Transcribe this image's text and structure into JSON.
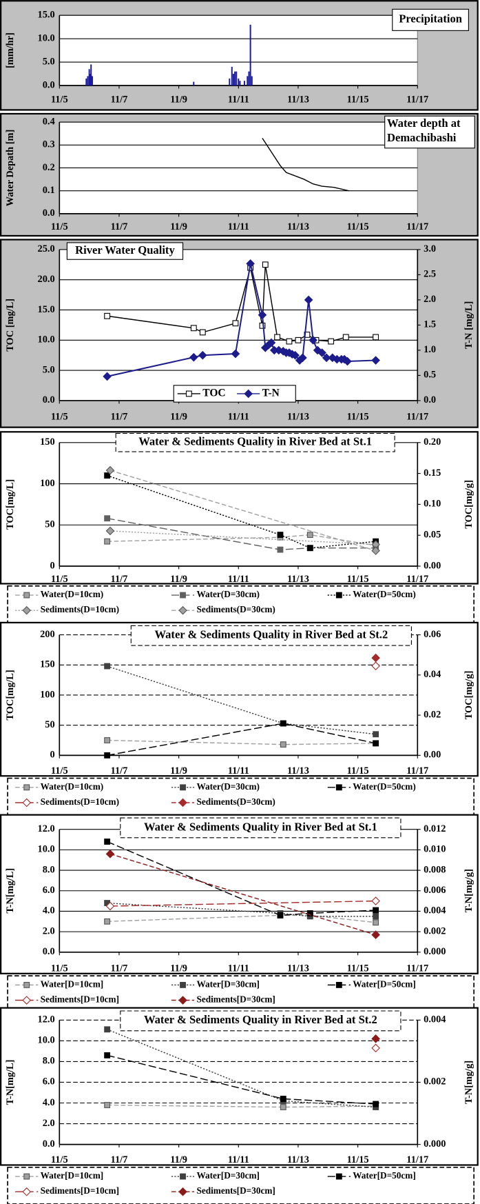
{
  "chart_data": [
    {
      "type": "bar",
      "title": "Precipitation",
      "ylabel": "[mm/hr]",
      "color": "#1a1a9c",
      "x": [
        5.9,
        5.95,
        6.0,
        6.03,
        6.06,
        6.1,
        9.5,
        10.7,
        10.78,
        10.83,
        10.88,
        10.93,
        11.0,
        11.05,
        11.2,
        11.3,
        11.35,
        11.4,
        11.45
      ],
      "values": [
        1.5,
        2.0,
        3.5,
        2.5,
        4.5,
        2.0,
        0.8,
        1.5,
        4.0,
        2.5,
        3.0,
        3.0,
        1.5,
        1.0,
        1.0,
        2.0,
        3.0,
        13.0,
        2.0
      ],
      "xlim": [
        5,
        17
      ],
      "xticks": [
        {
          "value": 5,
          "label": "11/5"
        },
        {
          "value": 7,
          "label": "11/7"
        },
        {
          "value": 9,
          "label": "11/9"
        },
        {
          "value": 11,
          "label": "11/11"
        },
        {
          "value": 13,
          "label": "11/13"
        },
        {
          "value": 15,
          "label": "11/15"
        },
        {
          "value": 17,
          "label": "11/17"
        }
      ],
      "ylim": [
        0,
        15
      ],
      "yticks": [
        {
          "value": 0,
          "label": "0.0"
        },
        {
          "value": 5,
          "label": "5.0"
        },
        {
          "value": 10,
          "label": "10.0"
        },
        {
          "value": 15,
          "label": "15.0"
        }
      ],
      "grid": true
    },
    {
      "type": "line",
      "title": [
        "Water depth at",
        "Demachibashi"
      ],
      "ylabel": "Water Depath [m]",
      "color": "#000000",
      "x": [
        11.8,
        12.0,
        12.2,
        12.4,
        12.6,
        12.9,
        13.2,
        13.5,
        13.8,
        14.2,
        14.7
      ],
      "values": [
        0.33,
        0.29,
        0.25,
        0.21,
        0.18,
        0.165,
        0.15,
        0.13,
        0.12,
        0.115,
        0.1
      ],
      "xlim": [
        5,
        17
      ],
      "xticks": [
        {
          "value": 5,
          "label": "11/5"
        },
        {
          "value": 7,
          "label": "11/7"
        },
        {
          "value": 9,
          "label": "11/9"
        },
        {
          "value": 11,
          "label": "11/11"
        },
        {
          "value": 13,
          "label": "11/13"
        },
        {
          "value": 15,
          "label": "11/15"
        },
        {
          "value": 17,
          "label": "11/17"
        }
      ],
      "ylim": [
        0,
        0.4
      ],
      "yticks": [
        {
          "value": 0,
          "label": "0.0"
        },
        0.1,
        0.2,
        0.3,
        0.4
      ],
      "grid": true
    },
    {
      "type": "line",
      "title": "River Water Quality",
      "ylabel": "TOC [mg/L]",
      "y2label": "T-N [mg/L]",
      "legend": "bottom",
      "series": [
        {
          "name": "TOC",
          "color": "#000000",
          "marker": "square",
          "filled": false,
          "dash": "solid",
          "x": [
            6.6,
            9.5,
            9.8,
            10.9,
            11.4,
            11.8,
            11.9,
            12.3,
            12.7,
            13.0,
            13.3,
            13.6,
            14.1,
            14.6,
            15.6
          ],
          "values": [
            14.0,
            12.0,
            11.3,
            12.8,
            22.0,
            12.4,
            22.5,
            10.5,
            9.8,
            10.0,
            10.9,
            10.0,
            9.8,
            10.5,
            10.5
          ]
        },
        {
          "name": "T-N",
          "color": "#1c1c8c",
          "marker": "diamond",
          "filled": true,
          "dash": "solid",
          "axis": "y2",
          "x": [
            6.6,
            9.5,
            9.8,
            10.9,
            11.4,
            11.8,
            11.9,
            12.0,
            12.1,
            12.2,
            12.35,
            12.5,
            12.6,
            12.7,
            12.8,
            12.9,
            13.05,
            13.15,
            13.35,
            13.5,
            13.65,
            13.8,
            13.95,
            14.15,
            14.3,
            14.45,
            14.55,
            14.65,
            15.6
          ],
          "values": [
            0.48,
            0.86,
            0.9,
            0.93,
            2.72,
            1.7,
            1.05,
            1.1,
            1.15,
            1.0,
            1.0,
            0.98,
            0.95,
            0.95,
            0.92,
            0.9,
            0.8,
            0.85,
            2.0,
            1.2,
            1.0,
            0.95,
            0.85,
            0.85,
            0.82,
            0.82,
            0.82,
            0.78,
            0.8
          ]
        }
      ],
      "xlim": [
        5,
        17
      ],
      "xticks": [
        {
          "value": 5,
          "label": "11/5"
        },
        {
          "value": 7,
          "label": "11/7"
        },
        {
          "value": 9,
          "label": "11/9"
        },
        {
          "value": 11,
          "label": "11/11"
        },
        {
          "value": 13,
          "label": "11/13"
        },
        {
          "value": 15,
          "label": "11/15"
        },
        {
          "value": 17,
          "label": "11/17"
        }
      ],
      "ylim": [
        0,
        25
      ],
      "yticks": [
        {
          "value": 0,
          "label": "0.0"
        },
        {
          "value": 5,
          "label": "5.0"
        },
        {
          "value": 10,
          "label": "10.0"
        },
        {
          "value": 15,
          "label": "15.0"
        },
        {
          "value": 20,
          "label": "20.0"
        },
        {
          "value": 25,
          "label": "25.0"
        }
      ],
      "y2lim": [
        0,
        3
      ],
      "y2ticks": [
        {
          "value": 0,
          "label": "0.0"
        },
        0.5,
        {
          "value": 1,
          "label": "1.0"
        },
        1.5,
        {
          "value": 2,
          "label": "2.0"
        },
        2.5,
        {
          "value": 3,
          "label": "3.0"
        }
      ],
      "grid": true
    },
    {
      "type": "line",
      "title": "Water & Sediments Quality in River Bed at St.1",
      "ylabel": "TOC[mg/L]",
      "y2label": "TOC[mg/g]",
      "legend": "below",
      "series": [
        {
          "name": "Water(D=10cm)",
          "color": "#a0a0a0",
          "marker": "square",
          "filled": true,
          "dash": "dashed",
          "x": [
            6.6,
            12.4,
            13.4,
            15.6
          ],
          "values": [
            30,
            35,
            38,
            25
          ]
        },
        {
          "name": "Water(D=30cm)",
          "color": "#606060",
          "marker": "square",
          "filled": true,
          "dash": "long-dashed",
          "x": [
            6.6,
            12.4,
            13.4,
            15.6
          ],
          "values": [
            58,
            20,
            22,
            22
          ]
        },
        {
          "name": "Water(D=50cm)",
          "color": "#000000",
          "marker": "square",
          "filled": true,
          "dash": "dotted",
          "x": [
            6.6,
            12.4,
            13.4,
            15.6
          ],
          "values": [
            110,
            38,
            22,
            30
          ]
        },
        {
          "name": "Sediments(D=10cm)",
          "color": "#a0a0a0",
          "marker": "diamond",
          "filled": true,
          "dash": "dotted",
          "axis": "y2",
          "x": [
            6.7,
            15.6
          ],
          "values": [
            0.057,
            0.035
          ]
        },
        {
          "name": "Sediments(D=30cm)",
          "color": "#a0a0a0",
          "marker": "diamond",
          "filled": true,
          "dash": "dashed",
          "axis": "y2",
          "x": [
            6.7,
            15.6
          ],
          "values": [
            0.155,
            0.025
          ]
        }
      ],
      "xlim": [
        5,
        17
      ],
      "xticks": [
        {
          "value": 5,
          "label": "11/5"
        },
        {
          "value": 7,
          "label": "11/7"
        },
        {
          "value": 9,
          "label": "11/9"
        },
        {
          "value": 11,
          "label": "11/11"
        },
        {
          "value": 13,
          "label": "11/13"
        },
        {
          "value": 15,
          "label": "11/15"
        },
        {
          "value": 17,
          "label": "11/17"
        }
      ],
      "ylim": [
        0,
        150
      ],
      "yticks": [
        0,
        50,
        100,
        150
      ],
      "y2lim": [
        0,
        0.2
      ],
      "y2ticks": [
        {
          "value": 0,
          "label": "0.00"
        },
        {
          "value": 0.05,
          "label": "0.05"
        },
        {
          "value": 0.1,
          "label": "0.10"
        },
        {
          "value": 0.15,
          "label": "0.15"
        },
        {
          "value": 0.2,
          "label": "0.20"
        }
      ],
      "grid": true
    },
    {
      "type": "line",
      "title": "Water & Sediments Quality in River Bed at St.2",
      "ylabel": "TOC[mg/L]",
      "y2label": "TOC[mg/g]",
      "legend": "below",
      "series": [
        {
          "name": "Water(D=10cm)",
          "color": "#a0a0a0",
          "marker": "square",
          "filled": true,
          "dash": "dashed",
          "x": [
            6.6,
            12.5,
            15.6
          ],
          "values": [
            25,
            18,
            20
          ]
        },
        {
          "name": "Water(D=30cm)",
          "color": "#404040",
          "marker": "square",
          "filled": true,
          "dash": "dotted",
          "x": [
            6.6,
            12.5,
            15.6
          ],
          "values": [
            148,
            53,
            35
          ]
        },
        {
          "name": "Water(D=50cm)",
          "color": "#000000",
          "marker": "square",
          "filled": true,
          "dash": "long-dashed",
          "x": [
            6.6,
            12.5,
            15.6
          ],
          "values": [
            0,
            53,
            20
          ]
        },
        {
          "name": "Sediments(D=10cm)",
          "color": "#a52a2a",
          "marker": "diamond",
          "filled": false,
          "dash": "long-dashed",
          "axis": "y2",
          "x": [
            15.6
          ],
          "values": [
            0.0445
          ]
        },
        {
          "name": "Sediments(D=30cm)",
          "color": "#a52a2a",
          "marker": "diamond",
          "filled": true,
          "dash": "dashed",
          "axis": "y2",
          "x": [
            15.6
          ],
          "values": [
            0.0485
          ]
        }
      ],
      "xlim": [
        5,
        17
      ],
      "xticks": [
        {
          "value": 5,
          "label": "11/5"
        },
        {
          "value": 7,
          "label": "11/7"
        },
        {
          "value": 9,
          "label": "11/9"
        },
        {
          "value": 11,
          "label": "11/11"
        },
        {
          "value": 13,
          "label": "11/13"
        },
        {
          "value": 15,
          "label": "11/15"
        },
        {
          "value": 17,
          "label": "11/17"
        }
      ],
      "ylim": [
        0,
        200
      ],
      "yticks": [
        0,
        50,
        100,
        150,
        200
      ],
      "y2lim": [
        0,
        0.06
      ],
      "y2ticks": [
        {
          "value": 0,
          "label": "0.00"
        },
        {
          "value": 0.02,
          "label": "0.02"
        },
        {
          "value": 0.04,
          "label": "0.04"
        },
        {
          "value": 0.06,
          "label": "0.06"
        }
      ],
      "grid": true
    },
    {
      "type": "line",
      "title": "Water & Sediments Quality in River Bed at St.1",
      "ylabel": "T-N[mg/L]",
      "y2label": "T-N[mg/g]",
      "legend": "below",
      "series": [
        {
          "name": "Water[D=10cm]",
          "color": "#a0a0a0",
          "marker": "square",
          "filled": true,
          "dash": "dashed",
          "x": [
            6.6,
            12.4,
            13.4,
            15.6
          ],
          "values": [
            3.0,
            3.6,
            3.6,
            2.9
          ]
        },
        {
          "name": "Water[D=30cm]",
          "color": "#404040",
          "marker": "square",
          "filled": true,
          "dash": "dotted",
          "x": [
            6.6,
            12.4,
            13.4,
            15.6
          ],
          "values": [
            4.8,
            3.8,
            3.5,
            3.5
          ]
        },
        {
          "name": "Water[D=50cm]",
          "color": "#000000",
          "marker": "square",
          "filled": true,
          "dash": "long-dashed",
          "x": [
            6.6,
            12.4,
            13.4,
            15.6
          ],
          "values": [
            10.8,
            3.6,
            3.8,
            4.1
          ]
        },
        {
          "name": "Sediments[D=10cm]",
          "color": "#a52a2a",
          "marker": "diamond",
          "filled": false,
          "dash": "long-dashed",
          "axis": "y2",
          "x": [
            6.7,
            15.6
          ],
          "values": [
            0.0045,
            0.005
          ]
        },
        {
          "name": "Sediments[D=30cm]",
          "color": "#8b1a1a",
          "marker": "diamond",
          "filled": true,
          "dash": "dashed",
          "axis": "y2",
          "x": [
            6.7,
            15.6
          ],
          "values": [
            0.0096,
            0.0017
          ]
        }
      ],
      "xlim": [
        5,
        17
      ],
      "xticks": [
        {
          "value": 5,
          "label": "11/5"
        },
        {
          "value": 7,
          "label": "11/7"
        },
        {
          "value": 9,
          "label": "11/9"
        },
        {
          "value": 11,
          "label": "11/11"
        },
        {
          "value": 13,
          "label": "11/13"
        },
        {
          "value": 15,
          "label": "11/15"
        },
        {
          "value": 17,
          "label": "11/17"
        }
      ],
      "ylim": [
        0,
        12
      ],
      "yticks": [
        {
          "value": 0,
          "label": "0.0"
        },
        {
          "value": 2,
          "label": "2.0"
        },
        {
          "value": 4,
          "label": "4.0"
        },
        {
          "value": 6,
          "label": "6.0"
        },
        {
          "value": 8,
          "label": "8.0"
        },
        {
          "value": 10,
          "label": "10.0"
        },
        {
          "value": 12,
          "label": "12.0"
        }
      ],
      "y2lim": [
        0,
        0.012
      ],
      "y2ticks": [
        {
          "value": 0,
          "label": "0.000"
        },
        {
          "value": 0.002,
          "label": "0.002"
        },
        {
          "value": 0.004,
          "label": "0.004"
        },
        {
          "value": 0.006,
          "label": "0.006"
        },
        {
          "value": 0.008,
          "label": "0.008"
        },
        {
          "value": 0.01,
          "label": "0.010"
        },
        {
          "value": 0.012,
          "label": "0.012"
        }
      ],
      "grid": true
    },
    {
      "type": "line",
      "title": "Water & Sediments Quality in River Bed at St.2",
      "ylabel": "T-N[mg/L]",
      "y2label": "T-N[mg/g]",
      "legend": "below",
      "series": [
        {
          "name": "Water[D=10cm]",
          "color": "#a0a0a0",
          "marker": "square",
          "filled": true,
          "dash": "dashed",
          "x": [
            6.6,
            12.5,
            15.6
          ],
          "values": [
            3.8,
            3.6,
            3.7
          ]
        },
        {
          "name": "Water[D=30cm]",
          "color": "#404040",
          "marker": "square",
          "filled": true,
          "dash": "dotted",
          "x": [
            6.6,
            12.5,
            15.6
          ],
          "values": [
            11.1,
            4.2,
            3.6
          ]
        },
        {
          "name": "Water[D=50cm]",
          "color": "#000000",
          "marker": "square",
          "filled": true,
          "dash": "long-dashed",
          "x": [
            6.6,
            12.5,
            15.6
          ],
          "values": [
            8.6,
            4.4,
            3.9
          ]
        },
        {
          "name": "Sediments[D=10cm]",
          "color": "#a52a2a",
          "marker": "diamond",
          "filled": false,
          "dash": "long-dashed",
          "axis": "y2",
          "x": [
            15.6
          ],
          "values": [
            0.0031
          ]
        },
        {
          "name": "Sediments[D=30cm]",
          "color": "#8b1a1a",
          "marker": "diamond",
          "filled": true,
          "dash": "dashed",
          "axis": "y2",
          "x": [
            15.6
          ],
          "values": [
            0.0034
          ]
        }
      ],
      "xlim": [
        5,
        17
      ],
      "xticks": [
        {
          "value": 5,
          "label": "11/5"
        },
        {
          "value": 7,
          "label": "11/7"
        },
        {
          "value": 9,
          "label": "11/9"
        },
        {
          "value": 11,
          "label": "11/11"
        },
        {
          "value": 13,
          "label": "11/13"
        },
        {
          "value": 15,
          "label": "11/15"
        },
        {
          "value": 17,
          "label": "11/17"
        }
      ],
      "ylim": [
        0,
        12
      ],
      "yticks": [
        {
          "value": 0,
          "label": "0.0"
        },
        {
          "value": 2,
          "label": "2.0"
        },
        {
          "value": 4,
          "label": "4.0"
        },
        {
          "value": 6,
          "label": "6.0"
        },
        {
          "value": 8,
          "label": "8.0"
        },
        {
          "value": 10,
          "label": "10.0"
        },
        {
          "value": 12,
          "label": "12.0"
        }
      ],
      "y2lim": [
        0,
        0.004
      ],
      "y2ticks": [
        {
          "value": 0,
          "label": "0.000"
        },
        {
          "value": 0.002,
          "label": "0.002"
        },
        {
          "value": 0.004,
          "label": "0.004"
        }
      ],
      "grid": true
    }
  ]
}
